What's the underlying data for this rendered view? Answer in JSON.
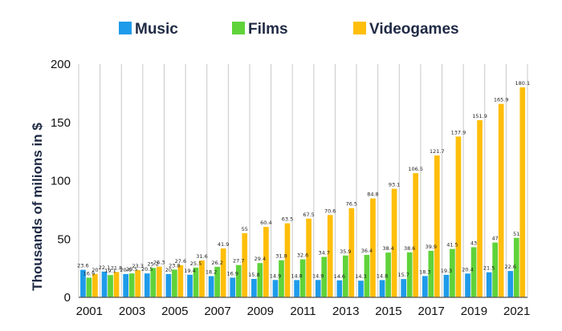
{
  "chart_data": {
    "type": "bar",
    "title": "",
    "xlabel": "",
    "ylabel": "Thousands of milions in $",
    "ylim": [
      0,
      200
    ],
    "yticks": [
      0,
      50,
      100,
      150,
      200
    ],
    "xtick_labels": [
      "2001",
      "2003",
      "2005",
      "2007",
      "2009",
      "2011",
      "2013",
      "2015",
      "2017",
      "2019",
      "2021"
    ],
    "categories": [
      "2001",
      "2002",
      "2003",
      "2004",
      "2005",
      "2006",
      "2007",
      "2008",
      "2009",
      "2010",
      "2011",
      "2012",
      "2013",
      "2014",
      "2015",
      "2016",
      "2017",
      "2018",
      "2019",
      "2020",
      "2021"
    ],
    "grid": "vertical",
    "legend_position": "top",
    "series": [
      {
        "name": "Music",
        "color": "#1E9BEA",
        "values": [
          23.6,
          22.1,
          20.0,
          20.5,
          20.0,
          19.4,
          18.2,
          16.9,
          15.8,
          14.9,
          14.8,
          14.9,
          14.6,
          14.3,
          14.8,
          15.7,
          18.3,
          19.3,
          20.4,
          21.5,
          22.6
        ],
        "labels": [
          "23.6",
          "22.1",
          "20.0",
          "20.5",
          "20",
          "19.4",
          "18.2",
          "16.9",
          "15.8",
          "14.9",
          "14.8",
          "14.9",
          "14.6",
          "14.3",
          "14.8",
          "15.7",
          "18.3",
          "19.3",
          "20.4",
          "21.5",
          "22.6"
        ]
      },
      {
        "name": "Films",
        "color": "#5FD33A",
        "values": [
          16.9,
          19.1,
          20.5,
          25.2,
          23.8,
          25.5,
          26.2,
          27.7,
          29.4,
          31.8,
          32.6,
          34.7,
          35.9,
          36.4,
          38.4,
          38.6,
          39.9,
          41.5,
          43.0,
          47.0,
          51.0
        ],
        "labels": [
          "16.9",
          "19.1",
          "20.5",
          "25.2",
          "23.8",
          "25.5",
          "26.2",
          "27.7",
          "29.4",
          "31.8",
          "32.6",
          "34.7",
          "35.9",
          "36.4",
          "38.4",
          "38.6",
          "39.9",
          "41.5",
          "43",
          "47",
          "51"
        ]
      },
      {
        "name": "Videogames",
        "color": "#FFBE0B",
        "values": [
          20.0,
          21.8,
          23.3,
          26.3,
          27.6,
          31.6,
          41.9,
          55.0,
          60.4,
          63.5,
          67.5,
          70.6,
          76.5,
          84.8,
          93.1,
          106.5,
          121.7,
          137.9,
          151.9,
          165.9,
          180.1
        ],
        "labels": [
          "20",
          "21.8",
          "23.3",
          "26.3",
          "27.6",
          "31.6",
          "41.9",
          "55",
          "60.4",
          "63.5",
          "67.5",
          "70.6",
          "76.5",
          "84.8",
          "93.1",
          "106.5",
          "121.7",
          "137.9",
          "151.9",
          "165.9",
          "180.1"
        ]
      }
    ]
  }
}
